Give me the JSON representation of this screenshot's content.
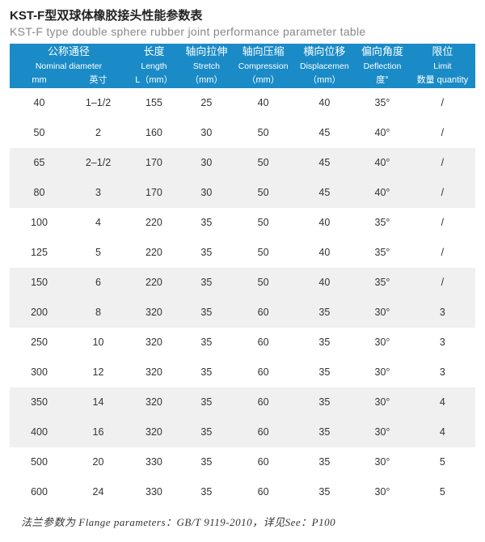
{
  "title": {
    "cn": "KST-F型双球体橡胶接头性能参数表",
    "en": "KST-F type double sphere rubber joint performance parameter table"
  },
  "header": {
    "nominal_diameter": {
      "cn": "公称通径",
      "en": "Nominal diameter",
      "unit_mm": "mm",
      "unit_in": "英寸"
    },
    "length": {
      "cn": "长度",
      "en": "Length",
      "unit": "L（mm）"
    },
    "stretch": {
      "cn": "轴向拉伸",
      "en": "Stretch",
      "unit": "（mm）"
    },
    "compression": {
      "cn": "轴向压缩",
      "en": "Compression",
      "unit": "（mm）"
    },
    "displacement": {
      "cn": "横向位移",
      "en": "Displacemen",
      "unit": "（mm）"
    },
    "deflection": {
      "cn": "偏向角度",
      "en": "Deflection",
      "unit": "度°"
    },
    "limit": {
      "cn": "限位",
      "en": "Limit",
      "unit": "数量 quantity"
    }
  },
  "rows": [
    {
      "mm": "40",
      "inch": "1–1/2",
      "len": "155",
      "str": "25",
      "cmp": "40",
      "dsp": "40",
      "dfl": "35°",
      "lim": "/"
    },
    {
      "mm": "50",
      "inch": "2",
      "len": "160",
      "str": "30",
      "cmp": "50",
      "dsp": "45",
      "dfl": "40°",
      "lim": "/"
    },
    {
      "mm": "65",
      "inch": "2–1/2",
      "len": "170",
      "str": "30",
      "cmp": "50",
      "dsp": "45",
      "dfl": "40°",
      "lim": "/"
    },
    {
      "mm": "80",
      "inch": "3",
      "len": "170",
      "str": "30",
      "cmp": "50",
      "dsp": "45",
      "dfl": "40°",
      "lim": "/"
    },
    {
      "mm": "100",
      "inch": "4",
      "len": "220",
      "str": "35",
      "cmp": "50",
      "dsp": "40",
      "dfl": "35°",
      "lim": "/"
    },
    {
      "mm": "125",
      "inch": "5",
      "len": "220",
      "str": "35",
      "cmp": "50",
      "dsp": "40",
      "dfl": "35°",
      "lim": "/"
    },
    {
      "mm": "150",
      "inch": "6",
      "len": "220",
      "str": "35",
      "cmp": "50",
      "dsp": "40",
      "dfl": "35°",
      "lim": "/"
    },
    {
      "mm": "200",
      "inch": "8",
      "len": "320",
      "str": "35",
      "cmp": "60",
      "dsp": "35",
      "dfl": "30°",
      "lim": "3"
    },
    {
      "mm": "250",
      "inch": "10",
      "len": "320",
      "str": "35",
      "cmp": "60",
      "dsp": "35",
      "dfl": "30°",
      "lim": "3"
    },
    {
      "mm": "300",
      "inch": "12",
      "len": "320",
      "str": "35",
      "cmp": "60",
      "dsp": "35",
      "dfl": "30°",
      "lim": "3"
    },
    {
      "mm": "350",
      "inch": "14",
      "len": "320",
      "str": "35",
      "cmp": "60",
      "dsp": "35",
      "dfl": "30°",
      "lim": "4"
    },
    {
      "mm": "400",
      "inch": "16",
      "len": "320",
      "str": "35",
      "cmp": "60",
      "dsp": "35",
      "dfl": "30°",
      "lim": "4"
    },
    {
      "mm": "500",
      "inch": "20",
      "len": "330",
      "str": "35",
      "cmp": "60",
      "dsp": "35",
      "dfl": "30°",
      "lim": "5"
    },
    {
      "mm": "600",
      "inch": "24",
      "len": "330",
      "str": "35",
      "cmp": "60",
      "dsp": "35",
      "dfl": "30°",
      "lim": "5"
    }
  ],
  "banding": [
    "",
    "",
    "band",
    "band",
    "",
    "",
    "band",
    "band",
    "",
    "",
    "band",
    "band",
    "",
    ""
  ],
  "footer": "法兰参数为 Flange parameters：GB/T 9119-2010，详见See：P100",
  "colors": {
    "header_bg": "#1a8bc6",
    "header_fg": "#ffffff",
    "band_bg": "#f0f0f0",
    "text": "#333333",
    "subtitle": "#888888",
    "background": "#ffffff"
  }
}
